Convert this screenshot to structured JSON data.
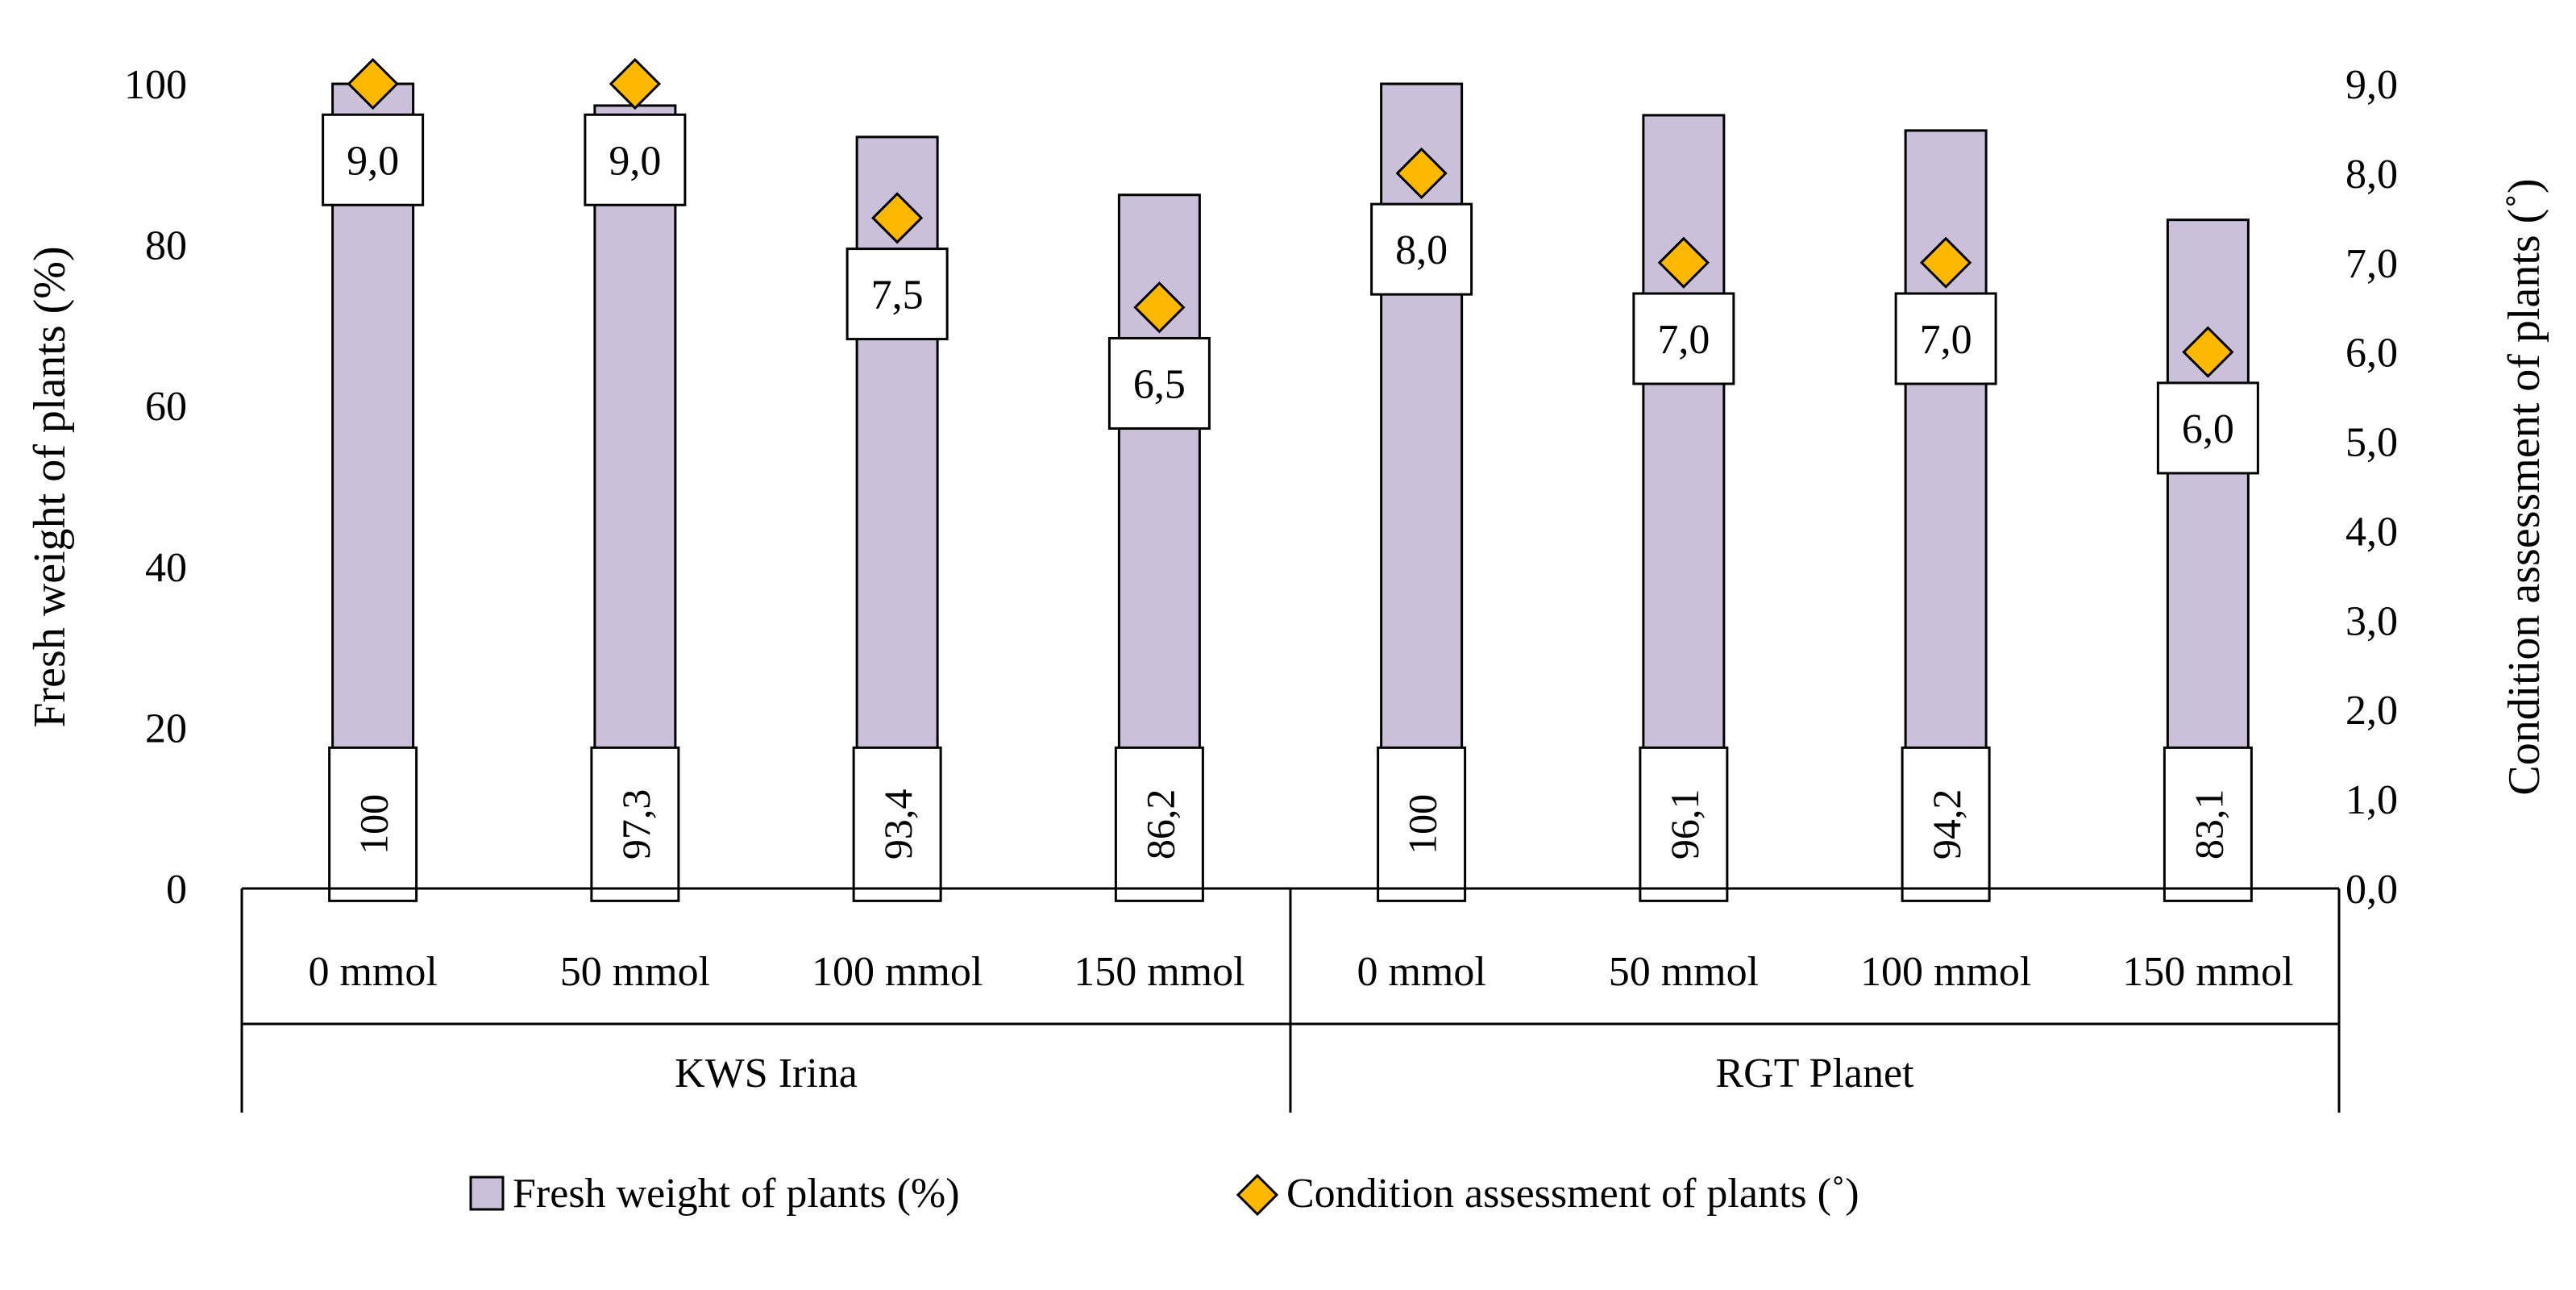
{
  "chart_data": {
    "type": "bar",
    "title": "",
    "groups": [
      {
        "name": "KWS Irina",
        "categories": [
          "0 mmol",
          "50 mmol",
          "100 mmol",
          "150 mmol"
        ]
      },
      {
        "name": "RGT Planet",
        "categories": [
          "0 mmol",
          "50 mmol",
          "100 mmol",
          "150 mmol"
        ]
      }
    ],
    "categories": [
      "0 mmol",
      "50 mmol",
      "100 mmol",
      "150 mmol",
      "0 mmol",
      "50 mmol",
      "100 mmol",
      "150 mmol"
    ],
    "series": [
      {
        "name": "Fresh weight of plants (%)",
        "kind": "bar",
        "axis": "left",
        "color": "#cbc0da",
        "values": [
          100,
          97.3,
          93.4,
          86.2,
          100,
          96.1,
          94.2,
          83.1
        ],
        "labels": [
          "100",
          "97,3",
          "93,4",
          "86,2",
          "100",
          "96,1",
          "94,2",
          "83,1"
        ]
      },
      {
        "name": "Condition assessment of plants (˚)",
        "kind": "marker-diamond",
        "axis": "right",
        "color": "#ffb800",
        "values": [
          9.0,
          9.0,
          7.5,
          6.5,
          8.0,
          7.0,
          7.0,
          6.0
        ],
        "labels": [
          "9,0",
          "9,0",
          "7,5",
          "6,5",
          "8,0",
          "7,0",
          "7,0",
          "6,0"
        ]
      }
    ],
    "ylabel": "Fresh weight of plants (%)",
    "ylim": [
      0,
      100
    ],
    "yticks": [
      "0",
      "20",
      "40",
      "60",
      "80",
      "100"
    ],
    "y2label": "Condition assessment of plants (˚)",
    "y2lim": [
      0,
      9
    ],
    "y2ticks": [
      "0,0",
      "1,0",
      "2,0",
      "3,0",
      "4,0",
      "5,0",
      "6,0",
      "7,0",
      "8,0",
      "9,0"
    ],
    "grid": false,
    "legend_position": "bottom"
  }
}
